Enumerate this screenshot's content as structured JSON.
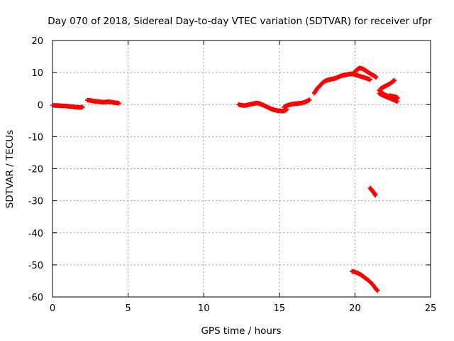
{
  "chart_data": {
    "type": "scatter",
    "title": "Day 070 of 2018, Sidereal Day-to-day VTEC variation (SDTVAR) for receiver ufpr",
    "xlabel": "GPS time / hours",
    "ylabel": "SDTVAR / TECUs",
    "xlim": [
      0,
      25
    ],
    "ylim": [
      -60,
      20
    ],
    "xticks": [
      0,
      5,
      10,
      15,
      20,
      25
    ],
    "yticks": [
      20,
      10,
      0,
      -10,
      -20,
      -30,
      -40,
      -50,
      -60
    ],
    "grid": true,
    "marker": "+",
    "color": "#ff0000",
    "series": [
      {
        "name": "segment-1",
        "points": [
          [
            0.0,
            -0.2
          ],
          [
            0.2,
            -0.3
          ],
          [
            0.4,
            -0.3
          ],
          [
            0.6,
            -0.4
          ],
          [
            0.8,
            -0.4
          ],
          [
            1.0,
            -0.5
          ],
          [
            1.2,
            -0.6
          ],
          [
            1.4,
            -0.7
          ],
          [
            1.6,
            -0.8
          ],
          [
            1.8,
            -0.9
          ],
          [
            2.0,
            -0.8
          ]
        ]
      },
      {
        "name": "segment-2",
        "points": [
          [
            2.3,
            1.4
          ],
          [
            2.5,
            1.3
          ],
          [
            2.7,
            1.1
          ],
          [
            2.9,
            1.0
          ],
          [
            3.1,
            0.9
          ],
          [
            3.3,
            0.8
          ],
          [
            3.5,
            0.8
          ],
          [
            3.7,
            0.9
          ],
          [
            3.9,
            0.8
          ],
          [
            4.1,
            0.6
          ],
          [
            4.3,
            0.5
          ],
          [
            4.4,
            0.4
          ]
        ]
      },
      {
        "name": "segment-3",
        "points": [
          [
            12.3,
            0.0
          ],
          [
            12.5,
            -0.2
          ],
          [
            12.7,
            -0.3
          ],
          [
            12.9,
            -0.1
          ],
          [
            13.1,
            0.1
          ],
          [
            13.3,
            0.3
          ],
          [
            13.5,
            0.5
          ],
          [
            13.7,
            0.3
          ],
          [
            13.9,
            -0.1
          ],
          [
            14.1,
            -0.5
          ],
          [
            14.3,
            -1.0
          ],
          [
            14.5,
            -1.4
          ],
          [
            14.7,
            -1.7
          ],
          [
            14.9,
            -1.9
          ],
          [
            15.1,
            -2.0
          ],
          [
            15.3,
            -2.0
          ],
          [
            15.5,
            -1.5
          ]
        ]
      },
      {
        "name": "segment-4",
        "points": [
          [
            15.3,
            -0.8
          ],
          [
            15.5,
            -0.3
          ],
          [
            15.7,
            0.0
          ],
          [
            15.9,
            0.2
          ],
          [
            16.1,
            0.3
          ],
          [
            16.3,
            0.4
          ],
          [
            16.5,
            0.5
          ],
          [
            16.8,
            1.0
          ],
          [
            17.0,
            1.5
          ]
        ]
      },
      {
        "name": "segment-5",
        "points": [
          [
            17.3,
            3.5
          ],
          [
            17.5,
            5.0
          ],
          [
            17.7,
            6.0
          ],
          [
            17.9,
            7.0
          ],
          [
            18.1,
            7.5
          ],
          [
            18.3,
            7.8
          ],
          [
            18.5,
            8.0
          ],
          [
            18.7,
            8.2
          ],
          [
            18.9,
            8.6
          ],
          [
            19.1,
            9.0
          ],
          [
            19.3,
            9.2
          ],
          [
            19.5,
            9.4
          ],
          [
            19.7,
            9.6
          ],
          [
            19.9,
            9.5
          ],
          [
            20.1,
            9.2
          ],
          [
            20.3,
            8.9
          ],
          [
            20.5,
            8.6
          ],
          [
            20.7,
            8.3
          ],
          [
            20.9,
            8.0
          ],
          [
            21.0,
            7.8
          ]
        ]
      },
      {
        "name": "segment-6",
        "points": [
          [
            19.9,
            9.8
          ],
          [
            20.1,
            10.8
          ],
          [
            20.3,
            11.4
          ],
          [
            20.5,
            11.2
          ],
          [
            20.7,
            10.6
          ],
          [
            20.9,
            10.0
          ],
          [
            21.1,
            9.4
          ],
          [
            21.3,
            8.9
          ],
          [
            21.4,
            8.5
          ]
        ]
      },
      {
        "name": "segment-7",
        "points": [
          [
            21.7,
            5.0
          ],
          [
            21.9,
            5.5
          ],
          [
            22.1,
            6.0
          ],
          [
            22.3,
            6.5
          ],
          [
            22.5,
            7.2
          ],
          [
            22.6,
            7.6
          ]
        ]
      },
      {
        "name": "segment-8",
        "points": [
          [
            21.6,
            4.5
          ],
          [
            21.8,
            3.6
          ],
          [
            22.0,
            3.0
          ],
          [
            22.2,
            2.6
          ],
          [
            22.4,
            2.3
          ],
          [
            22.6,
            2.1
          ],
          [
            22.8,
            1.9
          ]
        ]
      },
      {
        "name": "segment-9",
        "points": [
          [
            21.6,
            3.5
          ],
          [
            21.8,
            3.0
          ],
          [
            22.0,
            2.6
          ],
          [
            22.2,
            2.2
          ],
          [
            22.4,
            1.8
          ],
          [
            22.6,
            1.4
          ],
          [
            22.8,
            1.0
          ]
        ]
      },
      {
        "name": "segment-10",
        "points": [
          [
            22.3,
            2.8
          ],
          [
            22.5,
            2.6
          ],
          [
            22.7,
            2.4
          ],
          [
            22.8,
            2.2
          ]
        ]
      },
      {
        "name": "segment-11",
        "points": [
          [
            21.0,
            -26.0
          ],
          [
            21.1,
            -26.6
          ],
          [
            21.2,
            -27.2
          ],
          [
            21.3,
            -27.8
          ],
          [
            21.35,
            -28.3
          ]
        ]
      },
      {
        "name": "segment-12",
        "points": [
          [
            19.8,
            -52.0
          ],
          [
            20.0,
            -52.2
          ],
          [
            20.2,
            -52.6
          ],
          [
            20.4,
            -53.1
          ],
          [
            20.6,
            -53.8
          ],
          [
            20.8,
            -54.5
          ],
          [
            21.0,
            -55.3
          ],
          [
            21.2,
            -56.3
          ],
          [
            21.4,
            -57.6
          ],
          [
            21.5,
            -58.0
          ]
        ]
      }
    ]
  }
}
